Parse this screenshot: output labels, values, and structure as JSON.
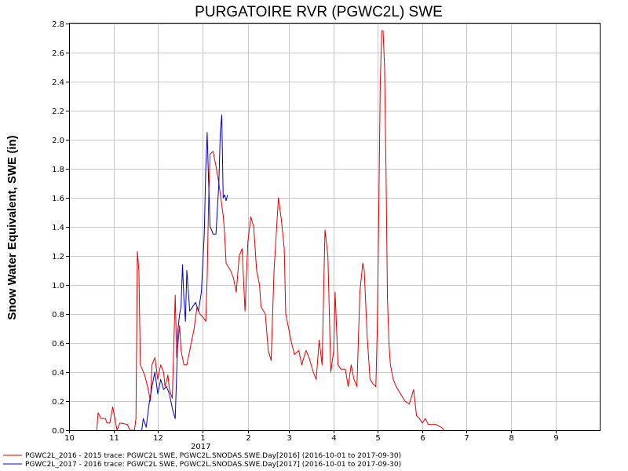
{
  "chart_data": {
    "type": "line",
    "title": "PURGATOIRE RVR (PGWC2L) SWE",
    "ylabel": "Snow Water Equivalent, SWE (in)",
    "xlabel": "",
    "year_label": "2017",
    "x_tick_labels": [
      "10",
      "11",
      "12",
      "1",
      "2",
      "3",
      "4",
      "5",
      "6",
      "7",
      "8",
      "9"
    ],
    "y_tick_labels": [
      "0.0",
      "0.2",
      "0.4",
      "0.6",
      "0.8",
      "1.0",
      "1.2",
      "1.4",
      "1.6",
      "1.8",
      "2.0",
      "2.2",
      "2.4",
      "2.6",
      "2.8"
    ],
    "xlim": [
      "2016-10-01",
      "2017-09-30"
    ],
    "ylim": [
      0,
      2.8
    ],
    "grid": true,
    "legend_position": "bottom",
    "series": [
      {
        "name": "PGWC2L_2016 - 2015 trace: PGWC2L SWE, PGWC2L.SNODAS.SWE.Day[2016] (2016-10-01 to 2017-09-30)",
        "color": "#e00000",
        "x": [
          "2016-10-20",
          "2016-10-21",
          "2016-10-23",
          "2016-10-26",
          "2016-10-27",
          "2016-10-29",
          "2016-10-31",
          "2016-11-03",
          "2016-11-05",
          "2016-11-10",
          "2016-11-12",
          "2016-11-15",
          "2016-11-16",
          "2016-11-17",
          "2016-11-18",
          "2016-11-19",
          "2016-11-22",
          "2016-11-24",
          "2016-11-26",
          "2016-11-27",
          "2016-11-29",
          "2016-12-01",
          "2016-12-03",
          "2016-12-05",
          "2016-12-06",
          "2016-12-08",
          "2016-12-09",
          "2016-12-11",
          "2016-12-13",
          "2016-12-14",
          "2016-12-16",
          "2016-12-17",
          "2016-12-19",
          "2016-12-21",
          "2016-12-24",
          "2016-12-26",
          "2016-12-28",
          "2016-12-30",
          "2017-01-01",
          "2017-01-03",
          "2017-01-04",
          "2017-01-05",
          "2017-01-06",
          "2017-01-08",
          "2017-01-10",
          "2017-01-12",
          "2017-01-14",
          "2017-01-15",
          "2017-01-16",
          "2017-01-17",
          "2017-01-20",
          "2017-01-22",
          "2017-01-24",
          "2017-01-26",
          "2017-01-28",
          "2017-01-30",
          "2017-02-01",
          "2017-02-03",
          "2017-02-05",
          "2017-02-07",
          "2017-02-09",
          "2017-02-10",
          "2017-02-13",
          "2017-02-15",
          "2017-02-17",
          "2017-02-19",
          "2017-02-22",
          "2017-02-24",
          "2017-02-26",
          "2017-02-27",
          "2017-03-01",
          "2017-03-03",
          "2017-03-05",
          "2017-03-08",
          "2017-03-10",
          "2017-03-13",
          "2017-03-15",
          "2017-03-18",
          "2017-03-20",
          "2017-03-22",
          "2017-03-24",
          "2017-03-26",
          "2017-03-28",
          "2017-03-30",
          "2017-04-01",
          "2017-04-02",
          "2017-04-04",
          "2017-04-06",
          "2017-04-07",
          "2017-04-09",
          "2017-04-11",
          "2017-04-13",
          "2017-04-15",
          "2017-04-17",
          "2017-04-19",
          "2017-04-21",
          "2017-04-22",
          "2017-04-24",
          "2017-04-26",
          "2017-04-28",
          "2017-04-30",
          "2017-05-01",
          "2017-05-02",
          "2017-05-03",
          "2017-05-04",
          "2017-05-05",
          "2017-05-06",
          "2017-05-07",
          "2017-05-08",
          "2017-05-09",
          "2017-05-10",
          "2017-05-12",
          "2017-05-14",
          "2017-05-17",
          "2017-05-20",
          "2017-05-23",
          "2017-05-26",
          "2017-05-28",
          "2017-05-30",
          "2017-06-01",
          "2017-06-03",
          "2017-06-05",
          "2017-06-07",
          "2017-06-10",
          "2017-06-14",
          "2017-06-16"
        ],
        "y": [
          0.0,
          0.12,
          0.08,
          0.08,
          0.05,
          0.05,
          0.16,
          0.0,
          0.05,
          0.04,
          0.0,
          0.0,
          0.08,
          1.23,
          1.1,
          0.45,
          0.38,
          0.3,
          0.2,
          0.45,
          0.5,
          0.35,
          0.45,
          0.4,
          0.3,
          0.38,
          0.28,
          0.22,
          0.93,
          0.5,
          0.72,
          0.55,
          0.45,
          0.45,
          0.6,
          0.7,
          0.85,
          0.8,
          0.78,
          0.75,
          1.05,
          1.6,
          1.9,
          1.92,
          1.82,
          1.7,
          1.55,
          1.48,
          1.35,
          1.15,
          1.1,
          1.05,
          0.95,
          1.2,
          1.25,
          0.82,
          1.3,
          1.47,
          1.4,
          1.1,
          1.0,
          0.85,
          0.8,
          0.55,
          0.48,
          1.1,
          1.6,
          1.45,
          1.25,
          0.8,
          0.7,
          0.6,
          0.52,
          0.55,
          0.45,
          0.55,
          0.5,
          0.4,
          0.35,
          0.62,
          0.45,
          1.38,
          1.2,
          0.4,
          0.55,
          0.95,
          0.45,
          0.42,
          0.42,
          0.42,
          0.3,
          0.45,
          0.35,
          0.3,
          0.95,
          1.15,
          1.1,
          0.65,
          0.35,
          0.32,
          0.3,
          0.7,
          1.5,
          2.35,
          2.75,
          2.75,
          2.5,
          1.8,
          0.9,
          0.6,
          0.45,
          0.35,
          0.3,
          0.25,
          0.2,
          0.18,
          0.28,
          0.1,
          0.08,
          0.05,
          0.08,
          0.04,
          0.04,
          0.04,
          0.02,
          0.0
        ]
      },
      {
        "name": "PGWC2L_2017 - 2016 trace: PGWC2L SWE, PGWC2L.SNODAS.SWE.Day[2017] (2016-10-01 to 2017-09-30)",
        "color": "#0000c8",
        "x": [
          "2016-11-20",
          "2016-11-21",
          "2016-11-23",
          "2016-11-25",
          "2016-11-27",
          "2016-11-29",
          "2016-12-01",
          "2016-12-03",
          "2016-12-05",
          "2016-12-07",
          "2016-12-09",
          "2016-12-11",
          "2016-12-13",
          "2016-12-15",
          "2016-12-16",
          "2016-12-17",
          "2016-12-18",
          "2016-12-19",
          "2016-12-20",
          "2016-12-21",
          "2016-12-23",
          "2016-12-25",
          "2016-12-27",
          "2016-12-29",
          "2016-12-31",
          "2017-01-02",
          "2017-01-03",
          "2017-01-04",
          "2017-01-05",
          "2017-01-06",
          "2017-01-07",
          "2017-01-08",
          "2017-01-10",
          "2017-01-12",
          "2017-01-13",
          "2017-01-14",
          "2017-01-15",
          "2017-01-16",
          "2017-01-17",
          "2017-01-18"
        ],
        "y": [
          0.0,
          0.08,
          0.02,
          0.18,
          0.3,
          0.4,
          0.25,
          0.35,
          0.28,
          0.3,
          0.25,
          0.15,
          0.08,
          0.7,
          0.8,
          0.85,
          1.14,
          0.9,
          0.75,
          1.1,
          0.82,
          0.85,
          0.88,
          0.82,
          0.95,
          1.35,
          1.8,
          2.05,
          1.7,
          1.4,
          1.38,
          1.35,
          1.35,
          1.7,
          2.05,
          2.17,
          1.6,
          1.62,
          1.58,
          1.62
        ]
      }
    ]
  }
}
